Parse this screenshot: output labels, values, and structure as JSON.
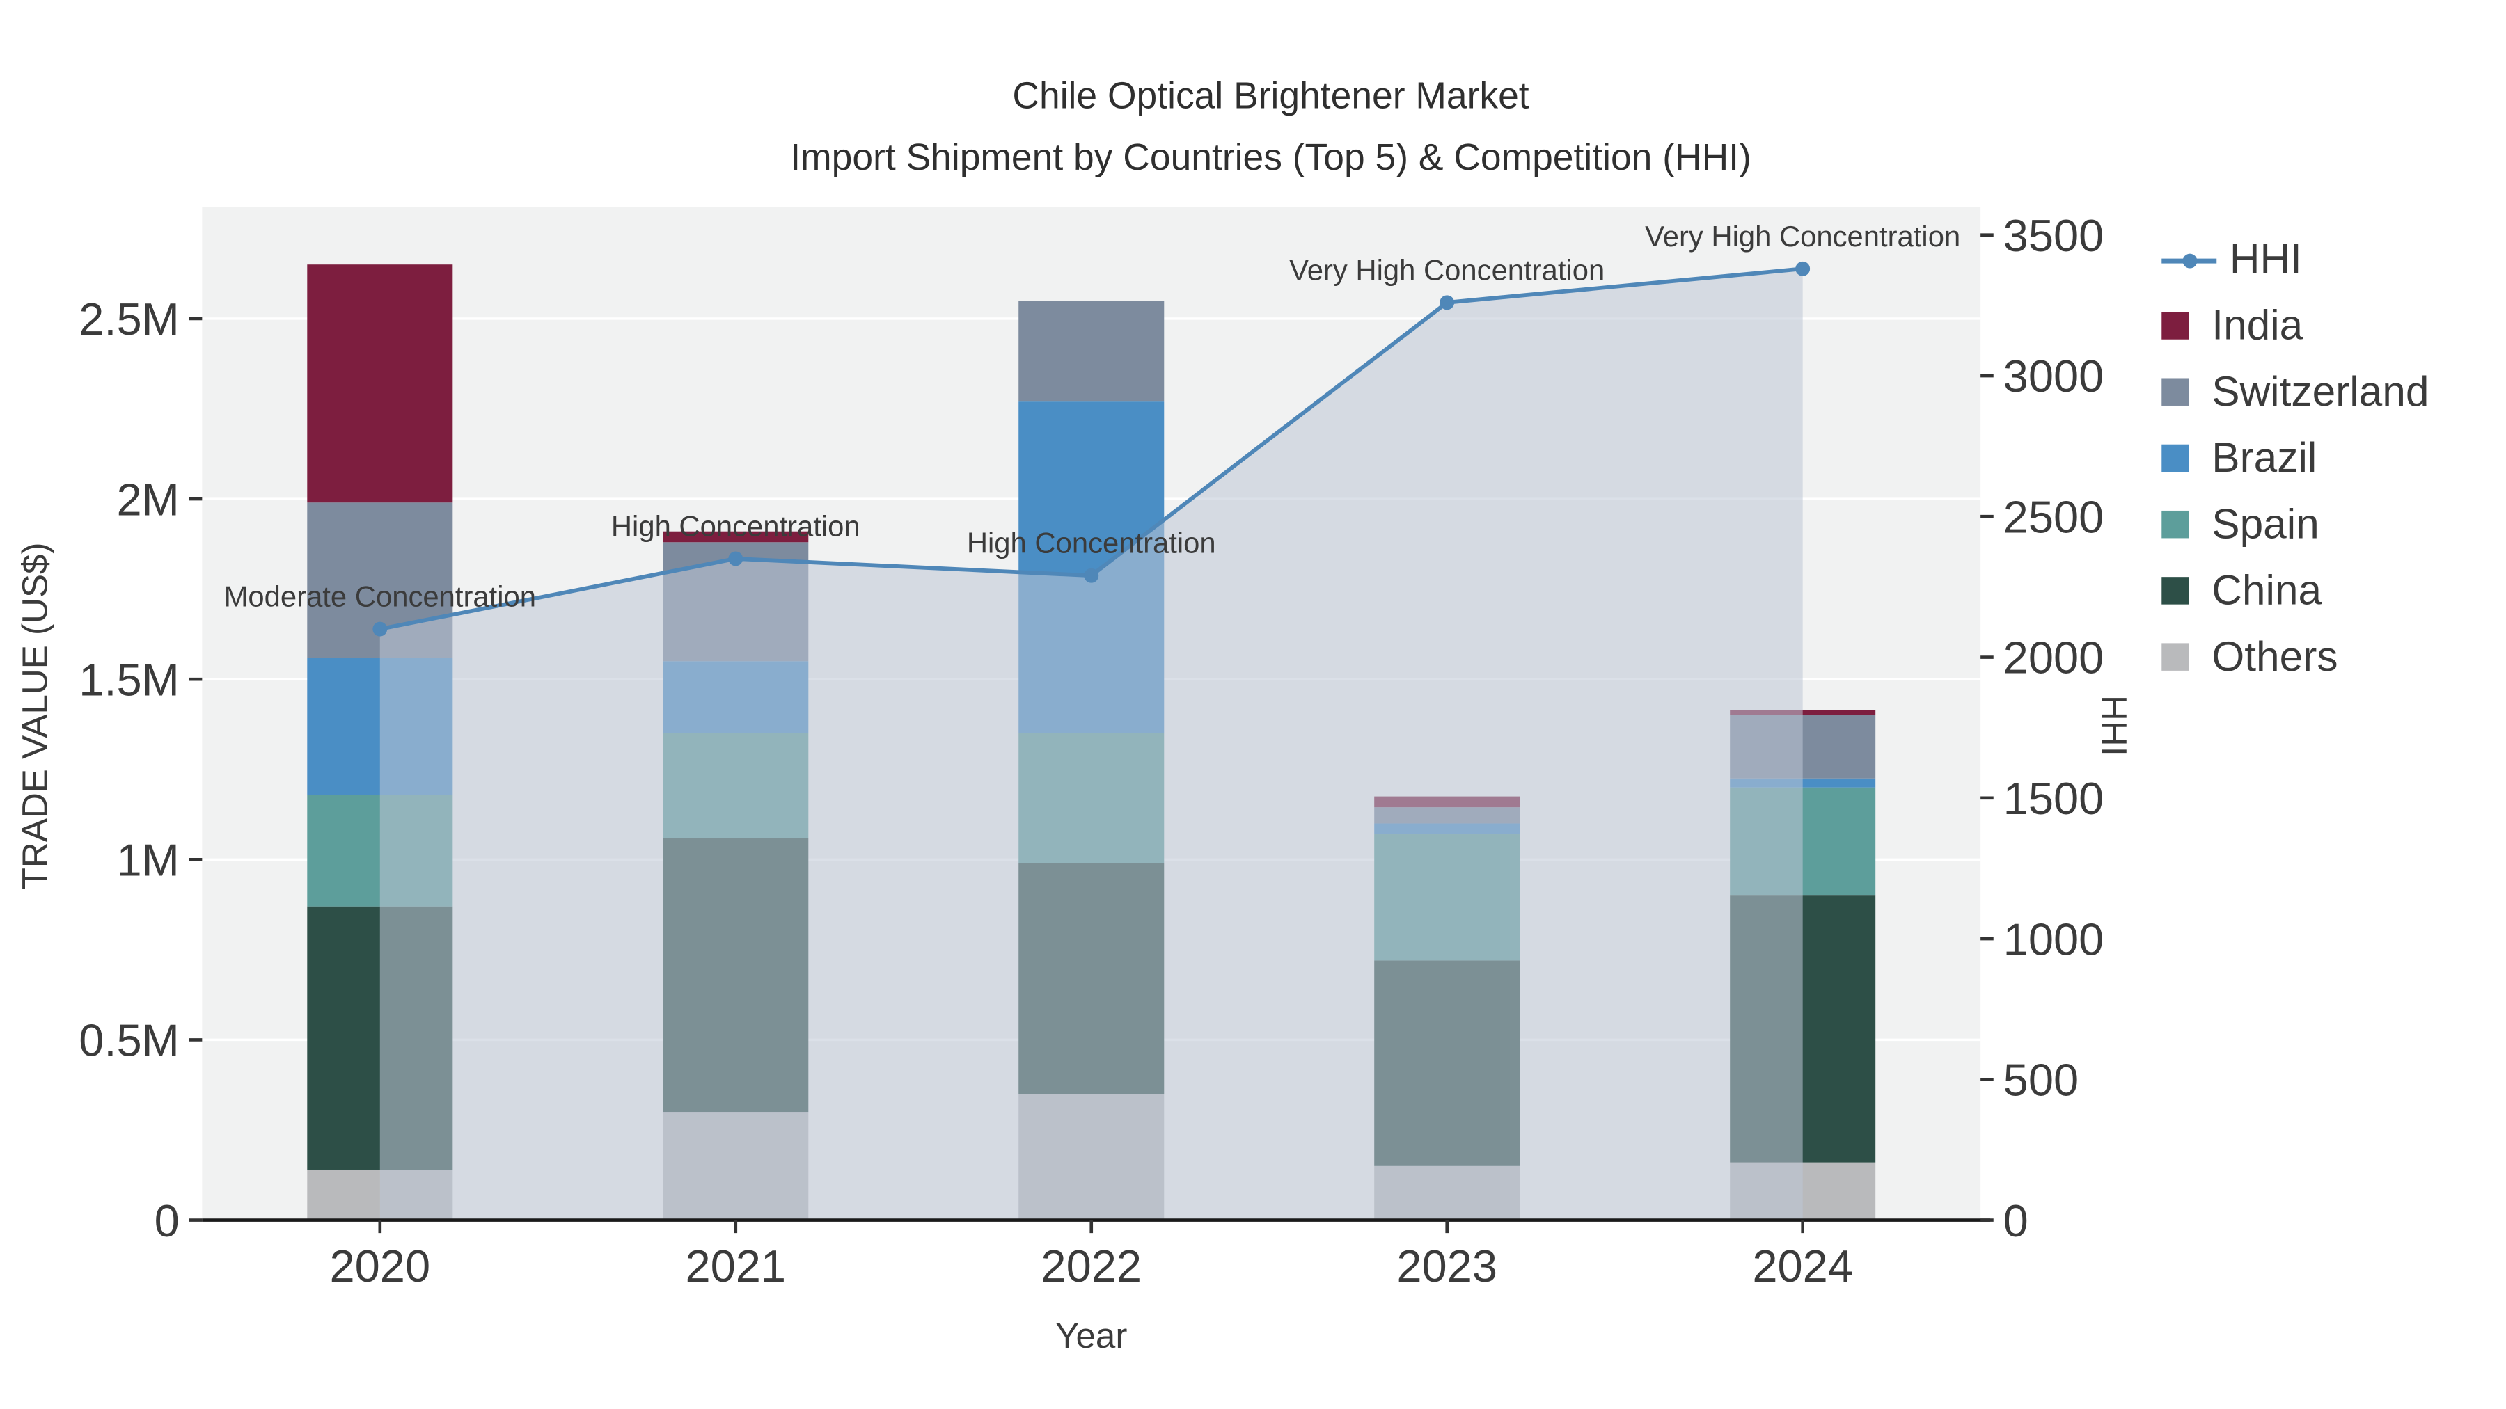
{
  "chart_data": {
    "type": "bar+line",
    "title_line1": "Chile Optical Brightener Market",
    "title_line2": "Import Shipment by Countries (Top 5) & Competition (HHI)",
    "xlabel": "Year",
    "ylabel_left": "TRADE VALUE (US$)",
    "ylabel_right": "HHI",
    "categories": [
      "2020",
      "2021",
      "2022",
      "2023",
      "2024"
    ],
    "bar_series": [
      {
        "name": "Others",
        "color": "#b9babc",
        "values": [
          140000,
          300000,
          350000,
          150000,
          160000
        ]
      },
      {
        "name": "China",
        "color": "#2d4f47",
        "values": [
          730000,
          760000,
          640000,
          570000,
          740000
        ]
      },
      {
        "name": "Spain",
        "color": "#5d9e9b",
        "values": [
          310000,
          290000,
          360000,
          350000,
          300000
        ]
      },
      {
        "name": "Brazil",
        "color": "#4a8ec5",
        "values": [
          380000,
          200000,
          920000,
          30000,
          25000
        ]
      },
      {
        "name": "Switzerland",
        "color": "#7d8b9e",
        "values": [
          430000,
          330000,
          280000,
          45000,
          175000
        ]
      },
      {
        "name": "India",
        "color": "#7d1e3f",
        "values": [
          660000,
          30000,
          0,
          30000,
          15000
        ]
      }
    ],
    "line_series": {
      "name": "HHI",
      "color": "#4f87b8",
      "fill_color": "rgba(190,199,213,0.55)",
      "values": [
        2100,
        2350,
        2290,
        3260,
        3380
      ],
      "annotations": [
        "Moderate Concentration",
        "High Concentration",
        "High Concentration",
        "Very High Concentration",
        "Very High Concentration"
      ]
    },
    "left_axis": {
      "tick_labels": [
        "0",
        "0.5M",
        "1M",
        "1.5M",
        "2M",
        "2.5M"
      ],
      "tick_values": [
        0,
        500000,
        1000000,
        1500000,
        2000000,
        2500000
      ],
      "max": 2810000
    },
    "right_axis": {
      "tick_labels": [
        "0",
        "500",
        "1000",
        "1500",
        "2000",
        "2500",
        "3000",
        "3500"
      ],
      "tick_values": [
        0,
        500,
        1000,
        1500,
        2000,
        2500,
        3000,
        3500
      ],
      "max": 3600
    },
    "plot_bg_color": "#f1f2f2",
    "grid_color": "#ffffff",
    "legend": [
      {
        "label": "HHI",
        "color": "#4f87b8",
        "type": "line"
      },
      {
        "label": "India",
        "color": "#7d1e3f",
        "type": "square"
      },
      {
        "label": "Switzerland",
        "color": "#7d8b9e",
        "type": "square"
      },
      {
        "label": "Brazil",
        "color": "#4a8ec5",
        "type": "square"
      },
      {
        "label": "Spain",
        "color": "#5d9e9b",
        "type": "square"
      },
      {
        "label": "China",
        "color": "#2d4f47",
        "type": "square"
      },
      {
        "label": "Others",
        "color": "#b9babc",
        "type": "square"
      }
    ]
  }
}
